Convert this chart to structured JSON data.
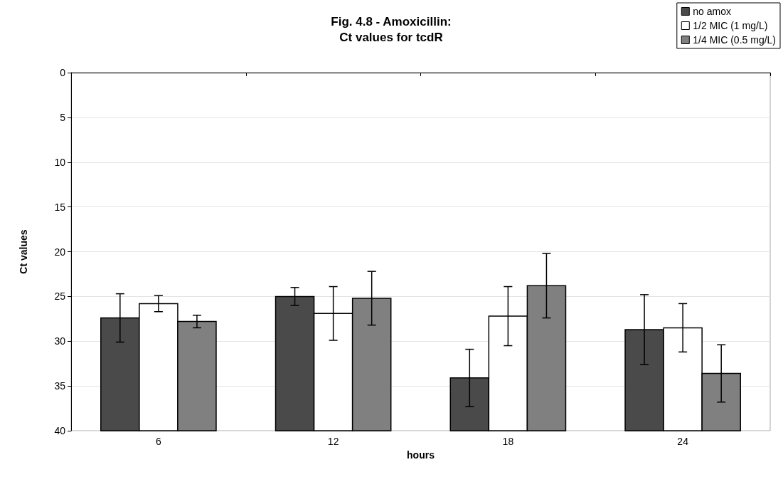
{
  "chart_data": {
    "type": "bar",
    "title": "Fig. 4.8 - Amoxicillin:\nCt values for tcdR",
    "xlabel": "hours",
    "ylabel": "Ct values",
    "categories": [
      "6",
      "12",
      "18",
      "24"
    ],
    "series": [
      {
        "name": "no amox",
        "color": "#4a4a4a",
        "base": [
          40,
          40,
          40,
          40
        ],
        "values": [
          -12.6,
          -15.0,
          -5.9,
          -11.3
        ],
        "errors": [
          2.7,
          1.0,
          3.2,
          3.9
        ]
      },
      {
        "name": "1/2 MIC (1 mg/L)",
        "color": "#ffffff",
        "base": [
          40,
          40,
          40,
          40
        ],
        "values": [
          -14.2,
          -13.1,
          -12.8,
          -11.5
        ],
        "errors": [
          0.9,
          3.0,
          3.3,
          2.7
        ]
      },
      {
        "name": "1/4 MIC (0.5 mg/L)",
        "color": "#808080",
        "base": [
          40,
          40,
          40,
          40
        ],
        "values": [
          -12.2,
          -14.8,
          -16.2,
          -6.4
        ],
        "errors": [
          0.7,
          3.0,
          3.6,
          3.2
        ]
      }
    ],
    "ylim": [
      40,
      0
    ],
    "yticks": [
      0,
      5,
      10,
      15,
      20,
      25,
      30,
      35,
      40
    ],
    "grid": "y",
    "legend": "top right"
  }
}
